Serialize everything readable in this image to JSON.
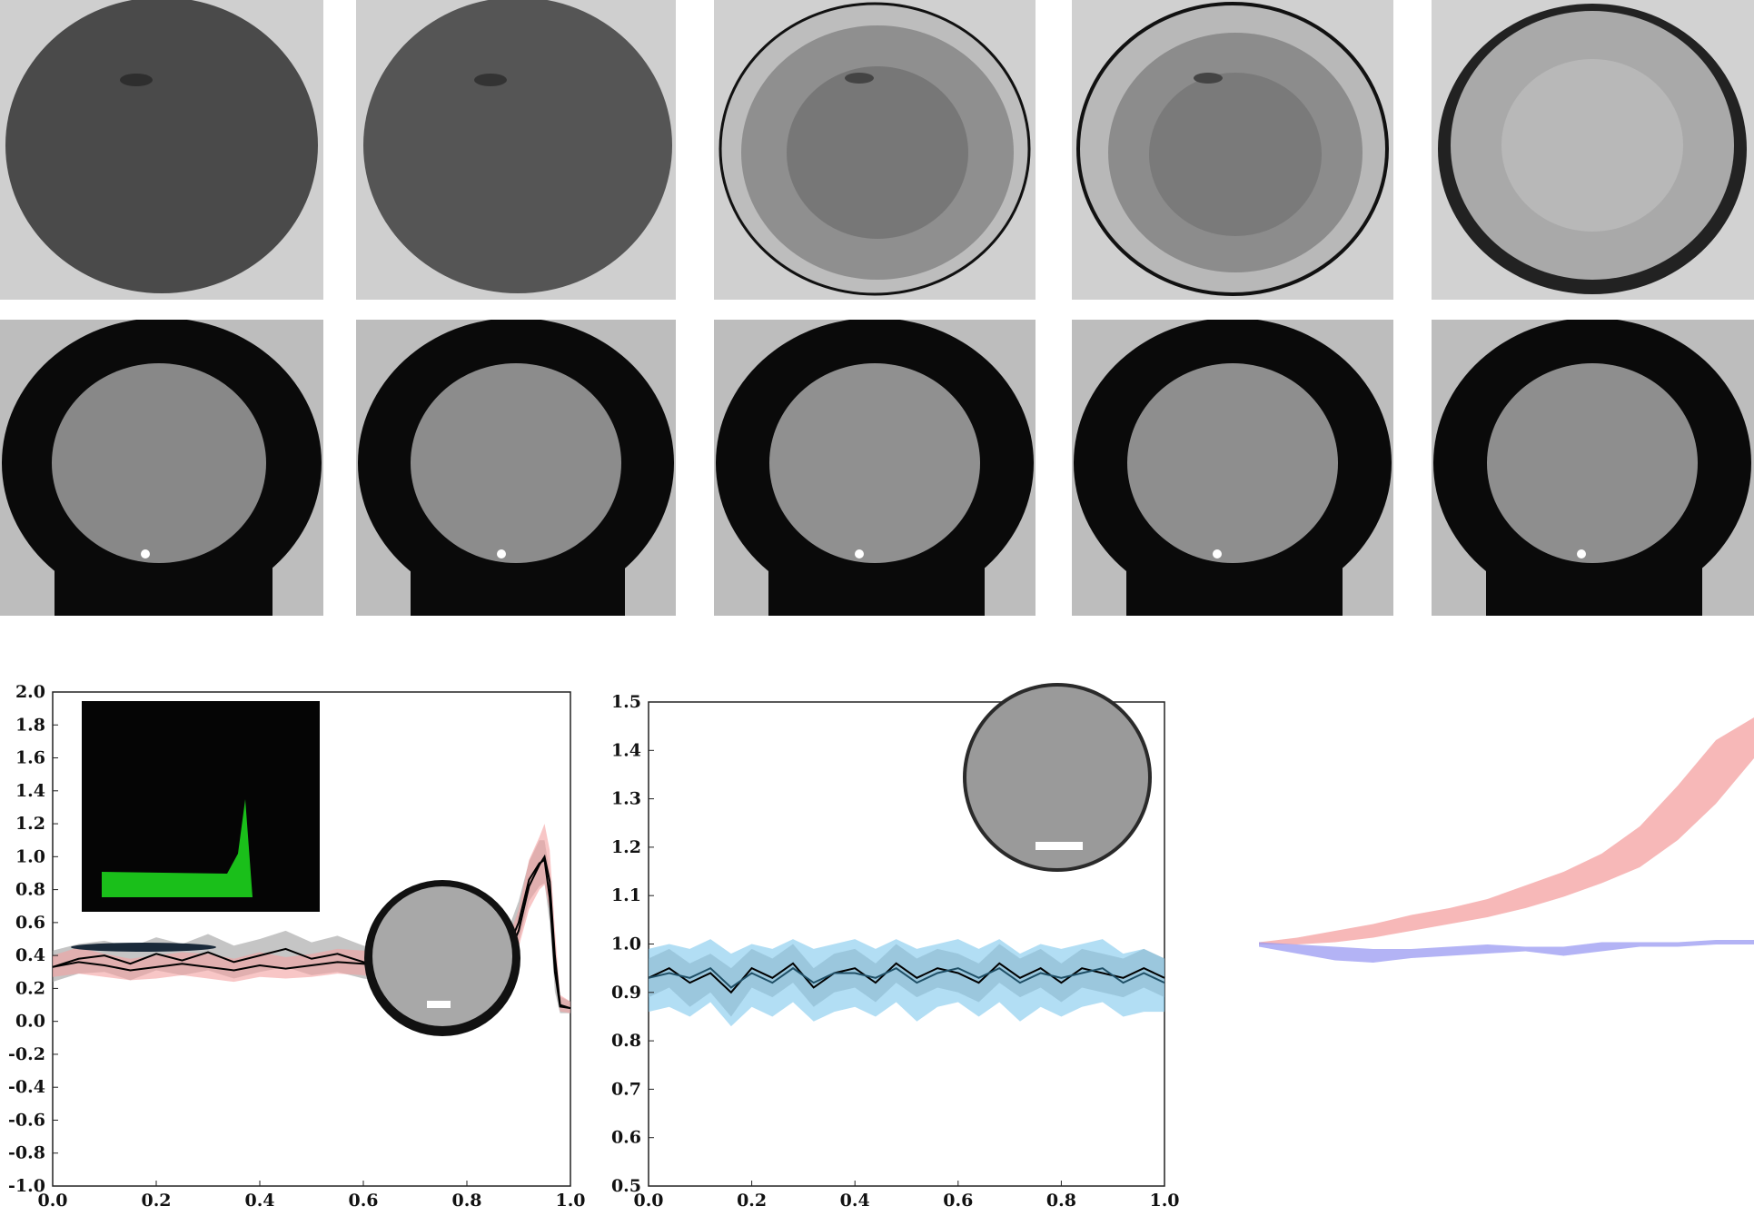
{
  "image_grid": {
    "rows": 2,
    "columns": 5,
    "row_1_description_free": true,
    "row_2_description_free": true
  },
  "colors": {
    "gray_band": "#9e9e9e",
    "red_band": "#f4a0a0",
    "blue_band": "#7fc8ec",
    "purple_band": "#9a9af2",
    "mean_line": "#000000",
    "inset_green": "#1fe01f"
  },
  "chart_data": [
    {
      "type": "line",
      "title": "",
      "xlabel": "",
      "ylabel": "",
      "xlim": [
        0.0,
        1.0
      ],
      "ylim": [
        -1.0,
        2.0
      ],
      "xticks": [
        "0.0",
        "0.2",
        "0.4",
        "0.6",
        "0.8",
        "1.0"
      ],
      "yticks": [
        "-1.0",
        "-0.8",
        "-0.6",
        "-0.4",
        "-0.2",
        "0.0",
        "0.2",
        "0.4",
        "0.6",
        "0.8",
        "1.0",
        "1.2",
        "1.4",
        "1.6",
        "1.8",
        "2.0"
      ],
      "grid": false,
      "legend": "none",
      "x": [
        0.0,
        0.05,
        0.1,
        0.15,
        0.2,
        0.25,
        0.3,
        0.35,
        0.4,
        0.45,
        0.5,
        0.55,
        0.6,
        0.65,
        0.7,
        0.75,
        0.8,
        0.85,
        0.88,
        0.9,
        0.92,
        0.94,
        0.95,
        0.96,
        0.97,
        0.98,
        1.0
      ],
      "series": [
        {
          "values": [
            0.33,
            0.38,
            0.4,
            0.35,
            0.41,
            0.37,
            0.42,
            0.36,
            0.4,
            0.44,
            0.38,
            0.41,
            0.36,
            0.33,
            0.31,
            0.34,
            0.3,
            0.36,
            0.45,
            0.6,
            0.86,
            0.96,
            0.98,
            0.75,
            0.3,
            0.09,
            0.08
          ],
          "band_low": [
            0.24,
            0.29,
            0.3,
            0.25,
            0.31,
            0.28,
            0.31,
            0.26,
            0.3,
            0.33,
            0.28,
            0.3,
            0.26,
            0.24,
            0.22,
            0.25,
            0.21,
            0.26,
            0.34,
            0.48,
            0.73,
            0.82,
            0.84,
            0.6,
            0.18,
            0.05,
            0.05
          ],
          "band_high": [
            0.43,
            0.47,
            0.49,
            0.45,
            0.51,
            0.47,
            0.53,
            0.46,
            0.5,
            0.55,
            0.48,
            0.52,
            0.46,
            0.43,
            0.41,
            0.44,
            0.4,
            0.46,
            0.56,
            0.73,
            0.97,
            1.1,
            1.1,
            0.9,
            0.44,
            0.15,
            0.12
          ]
        },
        {
          "values": [
            0.33,
            0.36,
            0.34,
            0.31,
            0.33,
            0.35,
            0.33,
            0.31,
            0.34,
            0.32,
            0.34,
            0.36,
            0.35,
            0.33,
            0.37,
            0.34,
            0.32,
            0.35,
            0.4,
            0.55,
            0.82,
            0.95,
            1.0,
            0.85,
            0.4,
            0.1,
            0.08
          ],
          "band_low": [
            0.27,
            0.29,
            0.27,
            0.25,
            0.26,
            0.28,
            0.26,
            0.24,
            0.27,
            0.26,
            0.27,
            0.29,
            0.28,
            0.26,
            0.3,
            0.27,
            0.25,
            0.28,
            0.32,
            0.45,
            0.68,
            0.8,
            0.83,
            0.68,
            0.26,
            0.06,
            0.05
          ],
          "band_high": [
            0.4,
            0.45,
            0.41,
            0.38,
            0.4,
            0.42,
            0.41,
            0.38,
            0.42,
            0.39,
            0.41,
            0.44,
            0.43,
            0.4,
            0.47,
            0.41,
            0.39,
            0.43,
            0.5,
            0.68,
            0.98,
            1.12,
            1.2,
            1.04,
            0.56,
            0.16,
            0.12
          ]
        }
      ]
    },
    {
      "type": "line",
      "title": "",
      "xlabel": "",
      "ylabel": "",
      "xlim": [
        0.0,
        1.0
      ],
      "ylim": [
        0.5,
        1.5
      ],
      "xticks": [
        "0.0",
        "0.2",
        "0.4",
        "0.6",
        "0.8",
        "1.0"
      ],
      "yticks": [
        "0.5",
        "0.6",
        "0.7",
        "0.8",
        "0.9",
        "1.0",
        "1.1",
        "1.2",
        "1.3",
        "1.4",
        "1.5"
      ],
      "grid": false,
      "legend": "none",
      "x": [
        0.0,
        0.04,
        0.08,
        0.12,
        0.16,
        0.2,
        0.24,
        0.28,
        0.32,
        0.36,
        0.4,
        0.44,
        0.48,
        0.52,
        0.56,
        0.6,
        0.64,
        0.68,
        0.72,
        0.76,
        0.8,
        0.84,
        0.88,
        0.92,
        0.96,
        1.0
      ],
      "series": [
        {
          "values": [
            0.93,
            0.95,
            0.92,
            0.94,
            0.9,
            0.95,
            0.93,
            0.96,
            0.91,
            0.94,
            0.95,
            0.92,
            0.96,
            0.93,
            0.95,
            0.94,
            0.92,
            0.96,
            0.93,
            0.95,
            0.92,
            0.95,
            0.94,
            0.93,
            0.95,
            0.93
          ],
          "band_low": [
            0.89,
            0.91,
            0.87,
            0.9,
            0.85,
            0.91,
            0.89,
            0.92,
            0.87,
            0.9,
            0.91,
            0.88,
            0.92,
            0.89,
            0.91,
            0.9,
            0.88,
            0.92,
            0.89,
            0.91,
            0.88,
            0.91,
            0.9,
            0.89,
            0.91,
            0.89
          ],
          "band_high": [
            0.97,
            0.99,
            0.96,
            0.98,
            0.95,
            0.99,
            0.97,
            1.0,
            0.95,
            0.98,
            0.99,
            0.96,
            1.0,
            0.97,
            0.99,
            0.98,
            0.96,
            1.0,
            0.97,
            0.99,
            0.96,
            0.99,
            0.98,
            0.97,
            0.99,
            0.97
          ]
        },
        {
          "values": [
            0.93,
            0.94,
            0.93,
            0.95,
            0.91,
            0.94,
            0.92,
            0.95,
            0.92,
            0.94,
            0.94,
            0.93,
            0.95,
            0.92,
            0.94,
            0.95,
            0.93,
            0.95,
            0.92,
            0.94,
            0.93,
            0.94,
            0.95,
            0.92,
            0.94,
            0.92
          ],
          "band_low": [
            0.86,
            0.87,
            0.85,
            0.88,
            0.83,
            0.87,
            0.85,
            0.88,
            0.84,
            0.86,
            0.87,
            0.85,
            0.88,
            0.84,
            0.87,
            0.88,
            0.85,
            0.88,
            0.84,
            0.87,
            0.85,
            0.87,
            0.88,
            0.85,
            0.86,
            0.86
          ],
          "band_high": [
            0.99,
            1.0,
            0.99,
            1.01,
            0.98,
            1.0,
            0.99,
            1.01,
            0.99,
            1.0,
            1.01,
            0.99,
            1.01,
            0.99,
            1.0,
            1.01,
            0.99,
            1.01,
            0.98,
            1.0,
            0.99,
            1.0,
            1.01,
            0.98,
            0.99,
            0.97
          ]
        }
      ]
    },
    {
      "type": "area",
      "title": "",
      "xlabel": "",
      "ylabel": "",
      "series": [
        {
          "values": [
            0.0,
            0.01,
            0.03,
            0.06,
            0.09,
            0.12,
            0.16,
            0.2,
            0.26,
            0.33,
            0.42,
            0.56,
            0.74,
            0.9
          ],
          "band_low": [
            0.0,
            0.0,
            0.01,
            0.03,
            0.06,
            0.09,
            0.12,
            0.16,
            0.21,
            0.27,
            0.34,
            0.46,
            0.62,
            0.82
          ],
          "band_high": [
            0.01,
            0.03,
            0.06,
            0.09,
            0.13,
            0.16,
            0.2,
            0.26,
            0.32,
            0.4,
            0.52,
            0.7,
            0.9,
            1.0
          ]
        },
        {
          "values": [
            0.0,
            -0.02,
            -0.04,
            -0.05,
            -0.04,
            -0.03,
            -0.02,
            -0.02,
            -0.03,
            -0.01,
            0.0,
            0.0,
            0.01,
            0.01
          ],
          "band_low": [
            -0.01,
            -0.04,
            -0.07,
            -0.08,
            -0.06,
            -0.05,
            -0.04,
            -0.03,
            -0.05,
            -0.03,
            -0.01,
            -0.01,
            0.0,
            0.0
          ],
          "band_high": [
            0.01,
            0.0,
            -0.01,
            -0.02,
            -0.02,
            -0.01,
            0.0,
            -0.01,
            -0.01,
            0.01,
            0.01,
            0.01,
            0.02,
            0.02
          ]
        }
      ]
    }
  ]
}
